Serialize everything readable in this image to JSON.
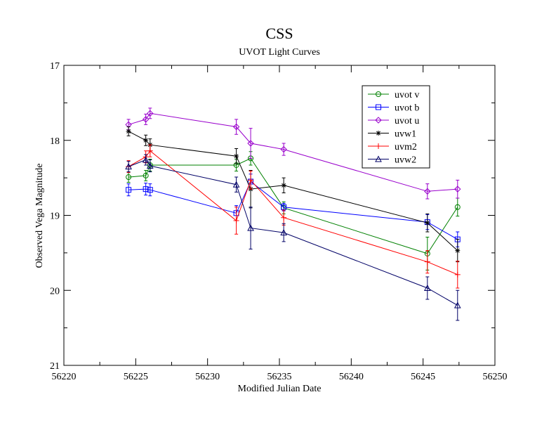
{
  "chart_data": {
    "type": "line",
    "title": "CSS",
    "subtitle": "UVOT Light Curves",
    "xlabel": "Modified Julian Date",
    "ylabel": "Observed Vega Magnitude",
    "xlim": [
      56220,
      56250
    ],
    "ylim": [
      17,
      21
    ],
    "y_inverted": true,
    "x_ticks": [
      56220,
      56225,
      56230,
      56235,
      56240,
      56245,
      56250
    ],
    "y_ticks": [
      17,
      18,
      19,
      20,
      21
    ],
    "x_tick_labels": [
      "56220",
      "56225",
      "56230",
      "56235",
      "56240",
      "56245",
      "56250"
    ],
    "y_tick_labels": [
      "17",
      "18",
      "19",
      "20",
      "21"
    ],
    "legend_position": "top-right",
    "series": [
      {
        "name": "uvot v",
        "color": "#008000",
        "marker": "circle",
        "x": [
          56224.5,
          56225.7,
          56226.0,
          56232.0,
          56233.0,
          56235.3,
          56245.3,
          56247.4
        ],
        "y": [
          18.49,
          18.47,
          18.33,
          18.33,
          18.24,
          18.9,
          19.51,
          18.89
        ],
        "err": [
          0.07,
          0.07,
          0.08,
          0.08,
          0.09,
          0.08,
          0.22,
          0.12
        ]
      },
      {
        "name": "uvot b",
        "color": "#0000ff",
        "marker": "square",
        "x": [
          56224.5,
          56225.7,
          56226.0,
          56232.0,
          56233.0,
          56235.3,
          56245.3,
          56247.4
        ],
        "y": [
          18.66,
          18.65,
          18.66,
          18.97,
          18.55,
          18.89,
          19.09,
          19.32
        ],
        "err": [
          0.08,
          0.08,
          0.08,
          0.1,
          0.1,
          0.05,
          0.1,
          0.1
        ]
      },
      {
        "name": "uvot u",
        "color": "#9900cc",
        "marker": "diamond",
        "x": [
          56224.5,
          56225.7,
          56226.0,
          56232.0,
          56233.0,
          56235.3,
          56245.3,
          56247.4
        ],
        "y": [
          17.79,
          17.72,
          17.64,
          17.82,
          18.04,
          18.12,
          18.68,
          18.65
        ],
        "err": [
          0.07,
          0.07,
          0.07,
          0.1,
          0.2,
          0.08,
          0.1,
          0.12
        ]
      },
      {
        "name": "uvw1",
        "color": "#000000",
        "marker": "star",
        "x": [
          56224.5,
          56225.7,
          56226.0,
          56232.0,
          56233.0,
          56235.3,
          56245.3,
          56247.4
        ],
        "y": [
          17.88,
          18.0,
          18.06,
          18.21,
          18.65,
          18.6,
          19.1,
          19.47
        ],
        "err": [
          0.06,
          0.07,
          0.08,
          0.1,
          0.25,
          0.1,
          0.12,
          0.15
        ]
      },
      {
        "name": "uvm2",
        "color": "#ff0000",
        "marker": "plus",
        "x": [
          56224.5,
          56225.7,
          56226.0,
          56232.0,
          56233.0,
          56235.3,
          56245.3,
          56247.4
        ],
        "y": [
          18.35,
          18.22,
          18.14,
          19.07,
          18.53,
          19.03,
          19.62,
          19.79
        ],
        "err": [
          0.08,
          0.08,
          0.08,
          0.18,
          0.12,
          0.1,
          0.15,
          0.18
        ]
      },
      {
        "name": "uvw2",
        "color": "#000066",
        "marker": "triangle",
        "x": [
          56224.5,
          56225.7,
          56226.0,
          56232.0,
          56233.0,
          56235.3,
          56245.3,
          56247.4
        ],
        "y": [
          18.35,
          18.26,
          18.34,
          18.59,
          19.17,
          19.23,
          19.97,
          20.2
        ],
        "err": [
          0.07,
          0.07,
          0.08,
          0.1,
          0.28,
          0.12,
          0.15,
          0.2
        ]
      }
    ]
  }
}
